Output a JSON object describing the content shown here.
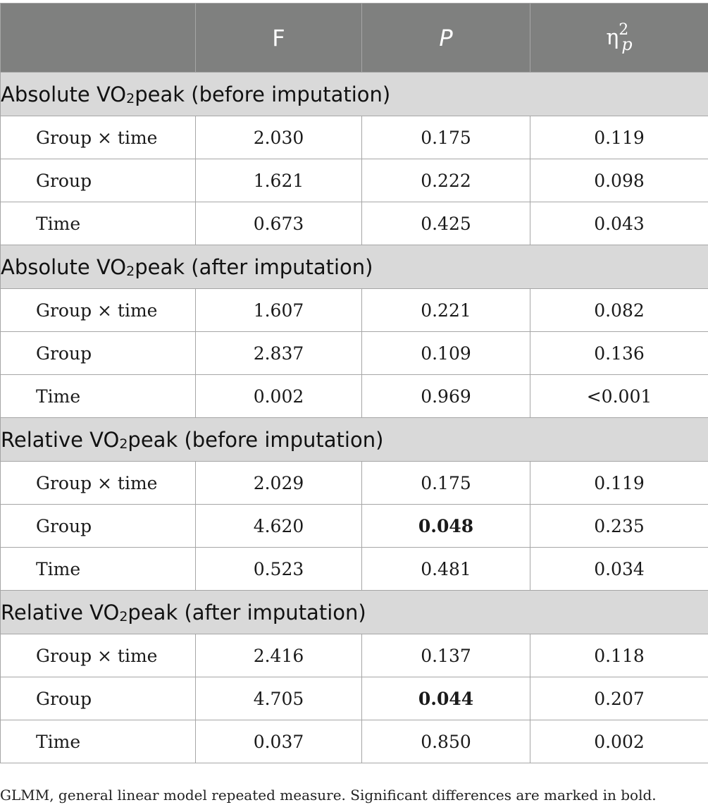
{
  "header": {
    "col_f": "F",
    "col_p": "P",
    "col_eta": "η",
    "eta_sup": "2",
    "eta_sub": "p"
  },
  "sections": [
    {
      "title_pre": "Absolute VO",
      "title_sub": "2",
      "title_post": "peak (before imputation)",
      "rows": [
        {
          "label": "Group × time",
          "f": "2.030",
          "p": "0.175",
          "eta": "0.119",
          "bold": false
        },
        {
          "label": "Group",
          "f": "1.621",
          "p": "0.222",
          "eta": "0.098",
          "bold": false
        },
        {
          "label": "Time",
          "f": "0.673",
          "p": "0.425",
          "eta": "0.043",
          "bold": false
        }
      ]
    },
    {
      "title_pre": "Absolute VO",
      "title_sub": "2",
      "title_post": "peak (after imputation)",
      "rows": [
        {
          "label": "Group × time",
          "f": "1.607",
          "p": "0.221",
          "eta": "0.082",
          "bold": false
        },
        {
          "label": "Group",
          "f": "2.837",
          "p": "0.109",
          "eta": "0.136",
          "bold": false
        },
        {
          "label": "Time",
          "f": "0.002",
          "p": "0.969",
          "eta": "<0.001",
          "bold": false
        }
      ]
    },
    {
      "title_pre": "Relative VO",
      "title_sub": "2",
      "title_post": "peak (before imputation)",
      "rows": [
        {
          "label": "Group × time",
          "f": "2.029",
          "p": "0.175",
          "eta": "0.119",
          "bold": false
        },
        {
          "label": "Group",
          "f": "4.620",
          "p": "0.048",
          "eta": "0.235",
          "bold": true
        },
        {
          "label": "Time",
          "f": "0.523",
          "p": "0.481",
          "eta": "0.034",
          "bold": false
        }
      ]
    },
    {
      "title_pre": "Relative VO",
      "title_sub": "2",
      "title_post": "peak (after imputation)",
      "rows": [
        {
          "label": "Group × time",
          "f": "2.416",
          "p": "0.137",
          "eta": "0.118",
          "bold": false
        },
        {
          "label": "Group",
          "f": "4.705",
          "p": "0.044",
          "eta": "0.207",
          "bold": true
        },
        {
          "label": "Time",
          "f": "0.037",
          "p": "0.850",
          "eta": "0.002",
          "bold": false
        }
      ]
    }
  ],
  "footnote": "GLMM, general linear model repeated measure. Significant differences are marked in bold."
}
